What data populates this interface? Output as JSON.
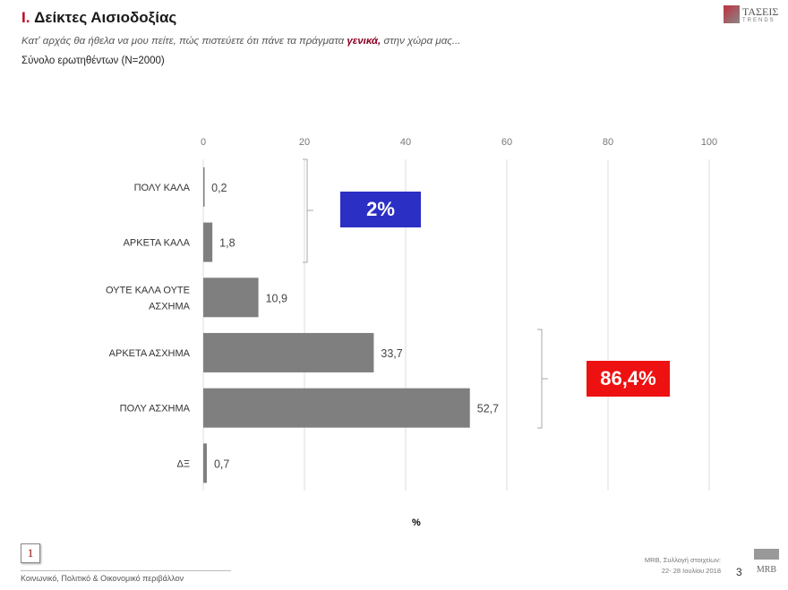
{
  "header": {
    "title_num": "I.",
    "title": " Δείκτες Αισιοδοξίας",
    "question_pre": "Κατ' αρχάς θα ήθελα να μου πείτε, πώς πιστεύετε ότι πάνε τα πράγματα ",
    "question_bold": "γενικά,",
    "question_post": " στην χώρα μας...",
    "base": "Σύνολο ερωτηθέντων (N=2000)"
  },
  "logo": {
    "name": "ΤΑΣΕΙΣ",
    "sub": "TRENDS"
  },
  "chart_data": {
    "type": "bar",
    "orientation": "horizontal",
    "categories": [
      "ΠΟΛΥ ΚΑΛΑ",
      "ΑΡΚΕΤΑ ΚΑΛΑ",
      "ΟΥΤΕ ΚΑΛΑ ΟΥΤΕ ΑΣΧΗΜΑ",
      "ΑΡΚΕΤΑ ΑΣΧΗΜΑ",
      "ΠΟΛΥ ΑΣΧΗΜΑ",
      "ΔΞ"
    ],
    "values": [
      0.2,
      1.8,
      10.9,
      33.7,
      52.7,
      0.7
    ],
    "value_labels": [
      "0,2",
      "1,8",
      "10,9",
      "33,7",
      "52,7",
      "0,7"
    ],
    "xlim": [
      0,
      100
    ],
    "xticks": [
      0,
      20,
      40,
      60,
      80,
      100
    ],
    "xlabel": "%",
    "grid": true,
    "bar_color": "#7f7f7f",
    "callouts": [
      {
        "label": "2%",
        "color": "#2b2fc4",
        "groups": [
          "ΠΟΛΥ ΚΑΛΑ",
          "ΑΡΚΕΤΑ ΚΑΛΑ"
        ]
      },
      {
        "label": "86,4%",
        "color": "#ee1111",
        "groups": [
          "ΑΡΚΕΤΑ ΑΣΧΗΜΑ",
          "ΠΟΛΥ ΑΣΧΗΜΑ"
        ]
      }
    ]
  },
  "footer": {
    "section_num": "1",
    "section": "Κοινωνικό, Πολιτικό & Οικονομικό περιβάλλον",
    "source_line1": "MRB, Συλλογή στοιχείων:",
    "source_line2": "22- 28 Ιουλίου 2018",
    "page": "3",
    "brand": "MRB"
  }
}
